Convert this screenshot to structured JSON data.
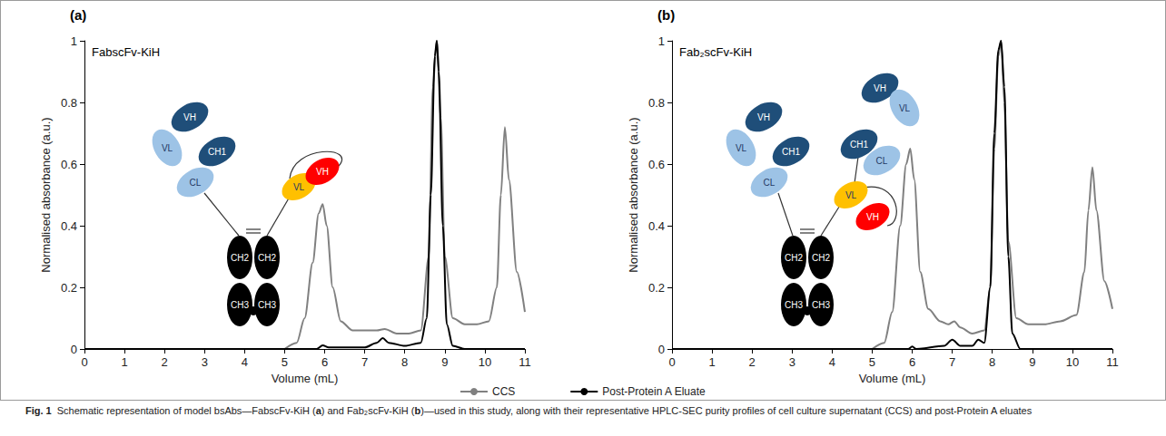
{
  "legend": "bottom",
  "caption": {
    "label": "Fig. 1",
    "text": "Schematic representation of model bsAbs—FabscFv-KiH (a) and Fab₂scFv-KiH (b)—used in this study, along with their representative HPLC-SEC purity profiles of cell culture supernatant (CCS) and post-Protein A eluates"
  },
  "chart_data": [
    {
      "type": "line",
      "panel": "(a)",
      "annotation": "FabscFv-KiH",
      "xlabel": "Volume (mL)",
      "ylabel": "Normalised absorbance (a.u.)",
      "xlim": [
        0,
        11
      ],
      "xticks": [
        0,
        1,
        2,
        3,
        4,
        5,
        6,
        7,
        8,
        9,
        10,
        11
      ],
      "ylim": [
        0,
        1
      ],
      "yticks": [
        0,
        0.2,
        0.4,
        0.6,
        0.8,
        1
      ],
      "grid": false,
      "series": [
        {
          "name": "CCS",
          "color": "#808080",
          "line_style": "solid",
          "x": [
            5.0,
            5.3,
            5.5,
            5.7,
            5.85,
            5.95,
            6.05,
            6.2,
            6.4,
            6.7,
            7.0,
            7.3,
            7.5,
            7.8,
            8.1,
            8.4,
            8.6,
            8.7,
            8.8,
            8.9,
            9.0,
            9.2,
            9.5,
            9.8,
            10.1,
            10.3,
            10.4,
            10.5,
            10.6,
            10.8,
            11.0
          ],
          "values": [
            0,
            0.02,
            0.1,
            0.28,
            0.44,
            0.47,
            0.4,
            0.2,
            0.09,
            0.06,
            0.06,
            0.06,
            0.065,
            0.05,
            0.05,
            0.06,
            0.3,
            0.85,
            1.0,
            0.75,
            0.3,
            0.1,
            0.08,
            0.08,
            0.09,
            0.2,
            0.5,
            0.72,
            0.55,
            0.25,
            0.12
          ]
        },
        {
          "name": "Post-Protein A Eluate",
          "color": "#000000",
          "line_style": "solid",
          "x": [
            0,
            5.0,
            5.8,
            5.95,
            6.1,
            7.0,
            7.3,
            7.45,
            7.6,
            8.0,
            8.4,
            8.55,
            8.65,
            8.75,
            8.8,
            8.85,
            8.95,
            9.05,
            9.2,
            9.5,
            11
          ],
          "values": [
            0,
            0,
            0,
            0.012,
            0.005,
            0.005,
            0.02,
            0.035,
            0.02,
            0.01,
            0.02,
            0.1,
            0.5,
            0.95,
            1.0,
            0.9,
            0.4,
            0.08,
            0.01,
            0,
            0
          ]
        }
      ],
      "schematic": {
        "domains": [
          {
            "label": "VH",
            "color": "#1f4e79"
          },
          {
            "label": "VL",
            "color": "#9dc3e6"
          },
          {
            "label": "CH1",
            "color": "#1f4e79"
          },
          {
            "label": "CL",
            "color": "#9dc3e6"
          },
          {
            "label": "CH2",
            "color": "#000000"
          },
          {
            "label": "CH2",
            "color": "#000000"
          },
          {
            "label": "CH3",
            "color": "#000000"
          },
          {
            "label": "CH3",
            "color": "#000000"
          },
          {
            "label": "VL",
            "color": "#ffc000"
          },
          {
            "label": "VH",
            "color": "#ff0000"
          }
        ]
      }
    },
    {
      "type": "line",
      "panel": "(b)",
      "annotation": "Fab₂scFv-KiH",
      "xlabel": "Volume (mL)",
      "ylabel": "Normalised absorbance (a.u.)",
      "xlim": [
        0,
        11
      ],
      "xticks": [
        0,
        1,
        2,
        3,
        4,
        5,
        6,
        7,
        8,
        9,
        10,
        11
      ],
      "ylim": [
        0,
        1
      ],
      "yticks": [
        0,
        0.2,
        0.4,
        0.6,
        0.8,
        1
      ],
      "grid": false,
      "series": [
        {
          "name": "CCS",
          "color": "#808080",
          "line_style": "solid",
          "x": [
            5.0,
            5.3,
            5.5,
            5.7,
            5.85,
            5.95,
            6.05,
            6.2,
            6.4,
            6.7,
            6.9,
            7.05,
            7.2,
            7.5,
            7.8,
            7.95,
            8.05,
            8.15,
            8.22,
            8.3,
            8.4,
            8.6,
            8.9,
            9.3,
            9.7,
            10.1,
            10.3,
            10.4,
            10.5,
            10.6,
            10.8,
            11.0
          ],
          "values": [
            0,
            0.02,
            0.12,
            0.4,
            0.6,
            0.65,
            0.55,
            0.25,
            0.13,
            0.09,
            0.08,
            0.09,
            0.07,
            0.05,
            0.06,
            0.2,
            0.65,
            0.95,
            1.0,
            0.8,
            0.35,
            0.1,
            0.08,
            0.08,
            0.09,
            0.11,
            0.25,
            0.45,
            0.59,
            0.45,
            0.22,
            0.13
          ]
        },
        {
          "name": "Post-Protein A Eluate",
          "color": "#000000",
          "line_style": "solid",
          "x": [
            0,
            5.0,
            5.9,
            6.0,
            6.1,
            6.8,
            7.0,
            7.2,
            7.5,
            7.65,
            7.8,
            7.95,
            8.05,
            8.15,
            8.22,
            8.3,
            8.4,
            8.5,
            8.7,
            11
          ],
          "values": [
            0,
            0,
            0,
            0.008,
            0,
            0.01,
            0.03,
            0.01,
            0.01,
            0.03,
            0.02,
            0.2,
            0.7,
            0.97,
            1.0,
            0.85,
            0.3,
            0.05,
            0,
            0
          ]
        }
      ],
      "schematic": {
        "domains": [
          {
            "label": "VH",
            "color": "#1f4e79"
          },
          {
            "label": "VL",
            "color": "#9dc3e6"
          },
          {
            "label": "CH1",
            "color": "#1f4e79"
          },
          {
            "label": "CL",
            "color": "#9dc3e6"
          },
          {
            "label": "CH2",
            "color": "#000000"
          },
          {
            "label": "CH2",
            "color": "#000000"
          },
          {
            "label": "CH3",
            "color": "#000000"
          },
          {
            "label": "CH3",
            "color": "#000000"
          },
          {
            "label": "VL",
            "color": "#ffc000"
          },
          {
            "label": "VH",
            "color": "#ff0000"
          },
          {
            "label": "VH",
            "color": "#1f4e79"
          },
          {
            "label": "VL",
            "color": "#9dc3e6"
          },
          {
            "label": "CH1",
            "color": "#1f4e79"
          },
          {
            "label": "CL",
            "color": "#9dc3e6"
          }
        ]
      }
    }
  ]
}
